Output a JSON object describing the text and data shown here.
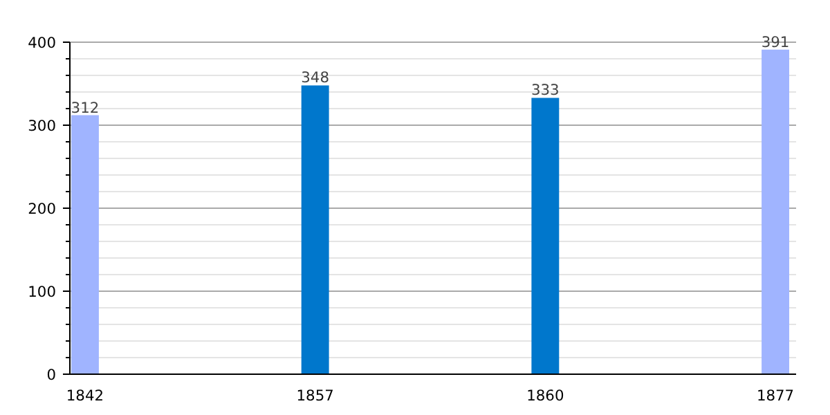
{
  "chart_data": {
    "type": "bar",
    "categories": [
      "1842",
      "1857",
      "1860",
      "1877"
    ],
    "values": [
      312,
      348,
      333,
      391
    ],
    "colors": [
      "#a0b4ff",
      "#0077cc",
      "#0077cc",
      "#a0b4ff"
    ],
    "ylim": [
      0,
      400
    ],
    "yticks": [
      0,
      100,
      200,
      300,
      400
    ],
    "grid": "y",
    "data_labels": true
  }
}
